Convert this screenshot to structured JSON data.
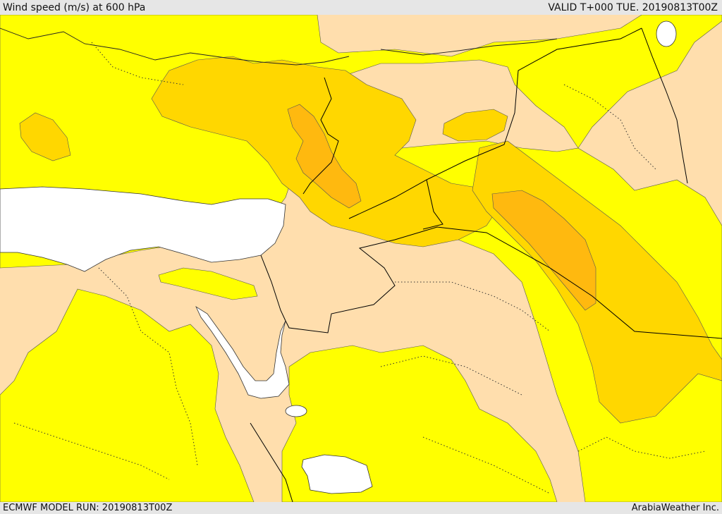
{
  "header": {
    "title": "Wind speed (m/s) at 600 hPa",
    "valid_time": "VALID T+000 TUE. 20190813T00Z"
  },
  "footer": {
    "model_run": "ECMWF MODEL RUN: 20190813T00Z",
    "credit": "ArabiaWeather Inc."
  },
  "map": {
    "variable": "wind speed",
    "level": "600 hPa",
    "colors": {
      "level_1": "#ffdead",
      "level_2": "#ffff00",
      "level_3": "#ffd700",
      "level_4": "#ffb90f",
      "level_5": "#f5a623",
      "no_data": "#ffffff"
    }
  }
}
